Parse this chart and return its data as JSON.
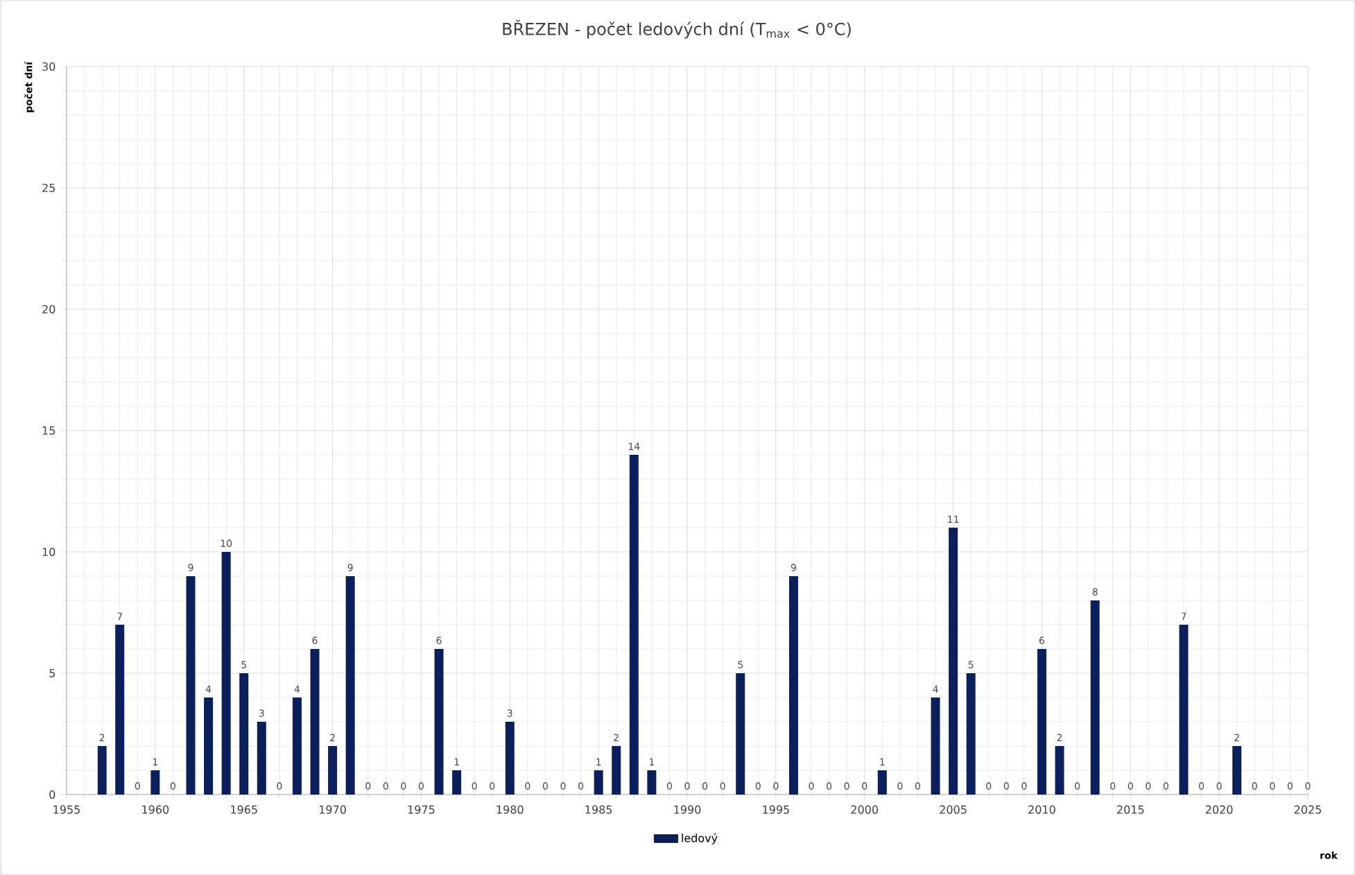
{
  "chart_data": {
    "type": "bar",
    "title": "BŘEZEN - počet ledových dní (T$_{max}$ < 0°C)",
    "xlabel": "rok",
    "ylabel": "počet dní",
    "x": [
      1957,
      1958,
      1959,
      1960,
      1961,
      1962,
      1963,
      1964,
      1965,
      1966,
      1967,
      1968,
      1969,
      1970,
      1971,
      1972,
      1973,
      1974,
      1975,
      1976,
      1977,
      1978,
      1979,
      1980,
      1981,
      1982,
      1983,
      1984,
      1985,
      1986,
      1987,
      1988,
      1989,
      1990,
      1991,
      1992,
      1993,
      1994,
      1995,
      1996,
      1997,
      1998,
      1999,
      2000,
      2001,
      2002,
      2003,
      2004,
      2005,
      2006,
      2007,
      2008,
      2009,
      2010,
      2011,
      2012,
      2013,
      2014,
      2015,
      2016,
      2017,
      2018,
      2019,
      2020,
      2021,
      2022,
      2023,
      2024,
      2025
    ],
    "series": [
      {
        "name": "ledový",
        "color": "#0b1f5c",
        "values": [
          2,
          7,
          0,
          1,
          0,
          9,
          4,
          10,
          5,
          3,
          0,
          4,
          6,
          2,
          9,
          0,
          0,
          0,
          0,
          6,
          1,
          0,
          0,
          3,
          0,
          0,
          0,
          0,
          1,
          2,
          14,
          1,
          0,
          0,
          0,
          0,
          5,
          0,
          0,
          9,
          0,
          0,
          0,
          0,
          1,
          0,
          0,
          4,
          11,
          5,
          0,
          0,
          0,
          6,
          2,
          0,
          8,
          0,
          0,
          0,
          0,
          7,
          0,
          0,
          2,
          0,
          0,
          0,
          0
        ]
      }
    ],
    "xlim": [
      1955,
      2025
    ],
    "xticks": [
      1955,
      1960,
      1965,
      1970,
      1975,
      1980,
      1985,
      1990,
      1995,
      2000,
      2005,
      2010,
      2015,
      2020,
      2025
    ],
    "ylim": [
      0,
      30
    ],
    "yticks": [
      0,
      5,
      10,
      15,
      20,
      25,
      30
    ],
    "grid": true,
    "legend": "bottom",
    "data_labels": true
  }
}
